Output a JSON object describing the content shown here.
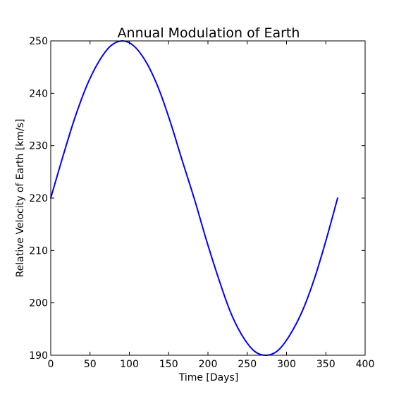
{
  "chart_data": {
    "type": "line",
    "title": "Annual Modulation of Earth",
    "xlabel": "Time [Days]",
    "ylabel": "Relative Velocity of Earth [km/s]",
    "xlim": [
      0,
      400
    ],
    "ylim": [
      190,
      250
    ],
    "xticks": [
      0,
      50,
      100,
      150,
      200,
      250,
      300,
      350,
      400
    ],
    "yticks": [
      190,
      200,
      210,
      220,
      230,
      240,
      250
    ],
    "grid": false,
    "legend": "none",
    "series": [
      {
        "color": "#0000ff",
        "x": [
          0,
          15,
          30,
          46,
          61,
          76,
          91,
          106,
          122,
          137,
          152,
          167,
          183,
          198,
          213,
          228,
          243,
          259,
          274,
          289,
          304,
          320,
          335,
          350,
          365
        ],
        "y": [
          220.0,
          227.7,
          235.0,
          241.5,
          246.0,
          249.0,
          250.0,
          249.0,
          245.8,
          241.0,
          234.6,
          227.3,
          219.7,
          212.0,
          204.9,
          198.5,
          193.9,
          190.8,
          190.0,
          190.9,
          193.8,
          198.4,
          204.4,
          211.8,
          220.0
        ]
      }
    ]
  }
}
